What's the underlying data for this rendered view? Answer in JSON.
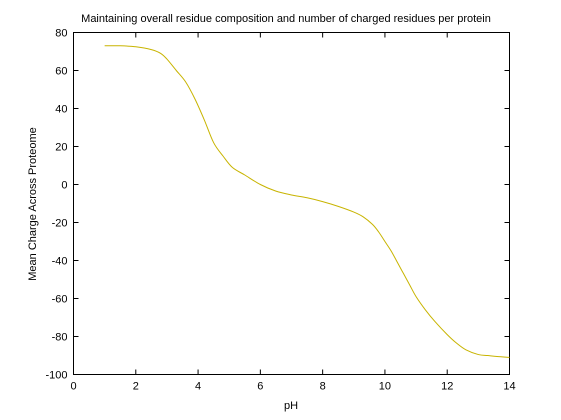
{
  "chart_data": {
    "type": "line",
    "title": "Maintaining overall residue composition and number of charged residues per protein",
    "xlabel": "pH",
    "ylabel": "Mean Charge Across Proteome",
    "xlim": [
      0,
      14
    ],
    "ylim": [
      -100,
      80
    ],
    "xticks": [
      0,
      2,
      4,
      6,
      8,
      10,
      12,
      14
    ],
    "yticks": [
      -100,
      -80,
      -60,
      -40,
      -20,
      0,
      20,
      40,
      60,
      80
    ],
    "grid": false,
    "series": [
      {
        "color": "#c8b400",
        "x": [
          1.0,
          1.5,
          2.0,
          2.5,
          2.8,
          3.0,
          3.3,
          3.6,
          3.9,
          4.2,
          4.5,
          4.8,
          5.1,
          5.5,
          6.0,
          6.5,
          7.0,
          7.5,
          8.0,
          8.5,
          9.0,
          9.3,
          9.6,
          9.8,
          10.0,
          10.2,
          10.4,
          10.6,
          10.8,
          11.0,
          11.3,
          11.6,
          12.0,
          12.3,
          12.6,
          13.0,
          13.3,
          13.6,
          14.0
        ],
        "y": [
          73,
          73,
          72.5,
          71,
          69,
          66,
          60,
          54,
          45,
          34,
          22,
          15,
          9,
          5,
          0,
          -3.5,
          -5.5,
          -7,
          -9,
          -11.5,
          -14.5,
          -17,
          -21,
          -25,
          -30,
          -35,
          -41,
          -47,
          -53,
          -59,
          -66,
          -72,
          -79,
          -83.5,
          -87,
          -89.5,
          -90,
          -90.5,
          -91
        ]
      }
    ]
  }
}
